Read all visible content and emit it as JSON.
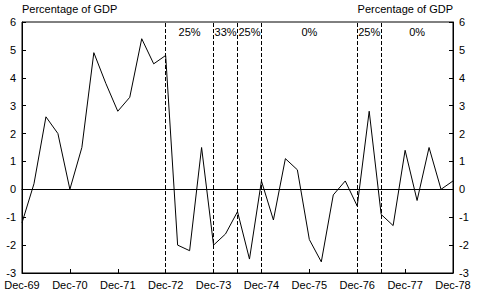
{
  "chart_data": {
    "type": "line",
    "y_label": "Percentage of GDP",
    "y2_label": "Percentage of GDP",
    "categories": [
      "Dec-69",
      null,
      null,
      null,
      "Dec-70",
      null,
      null,
      null,
      "Dec-71",
      null,
      null,
      null,
      "Dec-72",
      null,
      null,
      null,
      "Dec-73",
      null,
      null,
      null,
      "Dec-74",
      null,
      null,
      null,
      "Dec-75",
      null,
      null,
      null,
      "Dec-76",
      null,
      null,
      null,
      "Dec-77",
      null,
      null,
      null,
      "Dec-78"
    ],
    "values": [
      -1.2,
      0.2,
      2.6,
      2.0,
      0.0,
      1.5,
      4.9,
      3.8,
      2.8,
      3.3,
      5.4,
      4.5,
      4.8,
      -2.0,
      -2.2,
      1.5,
      -2.0,
      -1.6,
      -0.8,
      -2.5,
      0.3,
      -1.1,
      1.1,
      0.7,
      -1.8,
      -2.6,
      -0.2,
      0.3,
      -0.6,
      2.8,
      -0.9,
      -1.3,
      1.4,
      -0.4,
      1.5,
      0.0,
      0.3
    ],
    "color": "#000000",
    "ylim": [
      -3,
      6
    ],
    "yticks": [
      -3,
      -2,
      -1,
      0,
      1,
      2,
      3,
      4,
      5,
      6
    ],
    "y2lim": [
      -3,
      6
    ],
    "y2ticks": [
      -3,
      -2,
      -1,
      0,
      1,
      2,
      3,
      4,
      5,
      6
    ],
    "grid": false,
    "regions": [
      {
        "label": "25%",
        "from": 12,
        "to": 16
      },
      {
        "label": "33%",
        "from": 16,
        "to": 18
      },
      {
        "label": "25%",
        "from": 18,
        "to": 20
      },
      {
        "label": "0%",
        "from": 20,
        "to": 28
      },
      {
        "label": "25%",
        "from": 28,
        "to": 30
      },
      {
        "label": "0%",
        "from": 30,
        "to": 36
      }
    ]
  }
}
